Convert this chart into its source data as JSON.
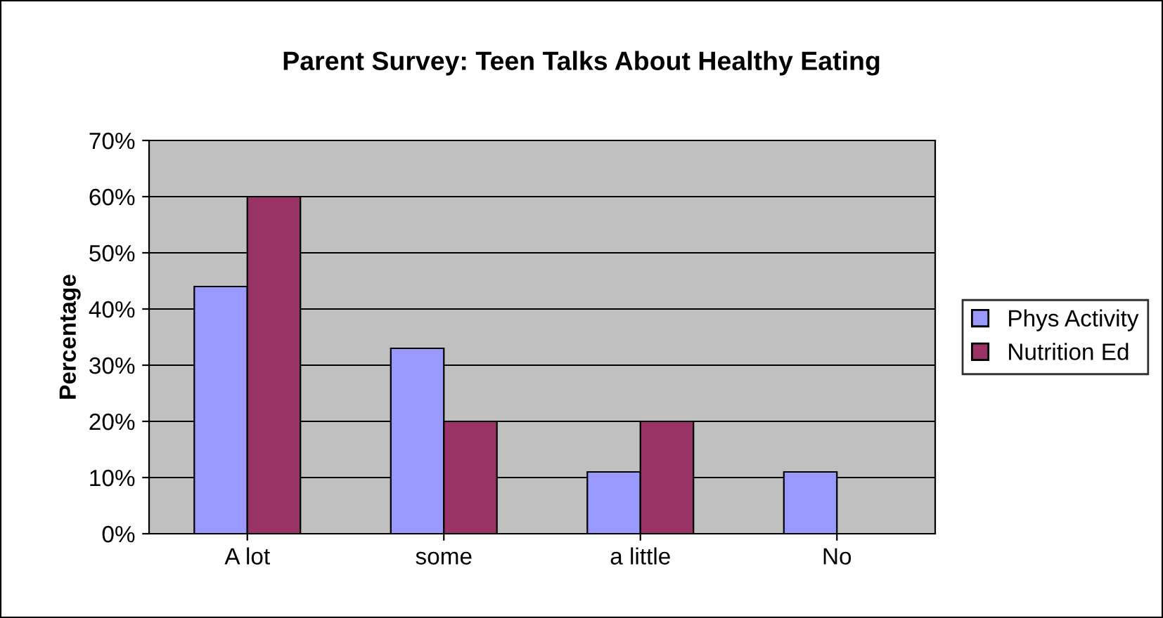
{
  "chart_data": {
    "type": "bar",
    "title": "Parent Survey: Teen Talks About Healthy Eating",
    "ylabel": "Percentage",
    "categories": [
      "A lot",
      "some",
      "a little",
      "No"
    ],
    "series": [
      {
        "name": "Phys Activity",
        "color": "#9999ff",
        "values": [
          0.44,
          0.33,
          0.11,
          0.11
        ]
      },
      {
        "name": "Nutrition Ed",
        "color": "#993366",
        "values": [
          0.6,
          0.2,
          0.2,
          null
        ]
      }
    ],
    "ylim": [
      0,
      0.7
    ],
    "yticks": [
      {
        "value": 0,
        "label": "0%"
      },
      {
        "value": 0.1,
        "label": "10%"
      },
      {
        "value": 0.2,
        "label": "20%"
      },
      {
        "value": 0.3,
        "label": "30%"
      },
      {
        "value": 0.4,
        "label": "40%"
      },
      {
        "value": 0.5,
        "label": "50%"
      },
      {
        "value": 0.6,
        "label": "60%"
      },
      {
        "value": 0.7,
        "label": "70%"
      }
    ],
    "grid": "y",
    "legend": "right"
  }
}
